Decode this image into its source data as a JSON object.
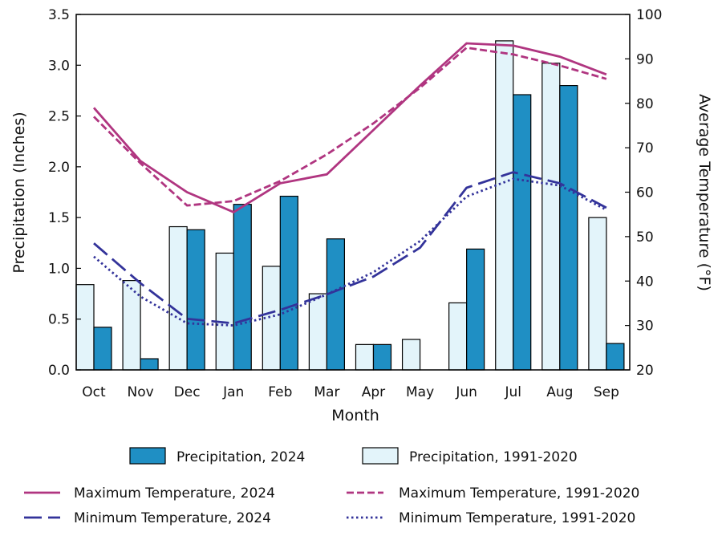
{
  "chart_data": {
    "type": "bar",
    "xlabel": "Month",
    "ylabel_left": "Precipitation (Inches)",
    "ylabel_right": "Average Temperature (°F)",
    "categories": [
      "Oct",
      "Nov",
      "Dec",
      "Jan",
      "Feb",
      "Mar",
      "Apr",
      "May",
      "Jun",
      "Jul",
      "Aug",
      "Sep"
    ],
    "ylim_left": [
      0,
      3.5
    ],
    "ylim_right": [
      20,
      100
    ],
    "left_ticks": [
      "0.0",
      "0.5",
      "1.0",
      "1.5",
      "2.0",
      "2.5",
      "3.0",
      "3.5"
    ],
    "right_ticks": [
      "20",
      "30",
      "40",
      "50",
      "60",
      "70",
      "80",
      "90",
      "100"
    ],
    "bar_series": [
      {
        "name": "Precipitation, 1991-2020",
        "color": "#e3f4fa",
        "values": [
          0.84,
          0.88,
          1.41,
          1.15,
          1.02,
          0.75,
          0.25,
          0.3,
          0.66,
          3.24,
          3.02,
          1.5
        ]
      },
      {
        "name": "Precipitation, 2024",
        "color": "#1f8fc4",
        "values": [
          0.42,
          0.11,
          1.38,
          1.63,
          1.71,
          1.29,
          0.25,
          0.0,
          1.19,
          2.71,
          2.8,
          0.26
        ]
      }
    ],
    "line_series": [
      {
        "name": "Maximum Temperature, 2024",
        "color": "#b03580",
        "dash": "solid",
        "values": [
          79.0,
          67.0,
          60.0,
          55.5,
          62.0,
          64.0,
          74.0,
          84.0,
          93.5,
          93.0,
          90.5,
          86.5
        ]
      },
      {
        "name": "Maximum Temperature, 1991-2020",
        "color": "#b03580",
        "dash": "dashed",
        "values": [
          77.0,
          66.5,
          57.0,
          58.0,
          62.5,
          68.5,
          75.5,
          83.5,
          92.5,
          91.0,
          88.5,
          85.5
        ]
      },
      {
        "name": "Minimum Temperature, 2024",
        "color": "#33339a",
        "dash": "longdash",
        "values": [
          48.5,
          39.5,
          31.5,
          30.5,
          33.5,
          37.0,
          41.0,
          47.5,
          61.0,
          64.5,
          62.0,
          56.5
        ]
      },
      {
        "name": "Minimum Temperature, 1991-2020",
        "color": "#33339a",
        "dash": "dotted",
        "values": [
          45.5,
          36.5,
          30.5,
          30.0,
          32.5,
          37.0,
          42.0,
          49.0,
          59.0,
          63.0,
          61.5,
          56.0
        ]
      }
    ],
    "grid": false
  }
}
